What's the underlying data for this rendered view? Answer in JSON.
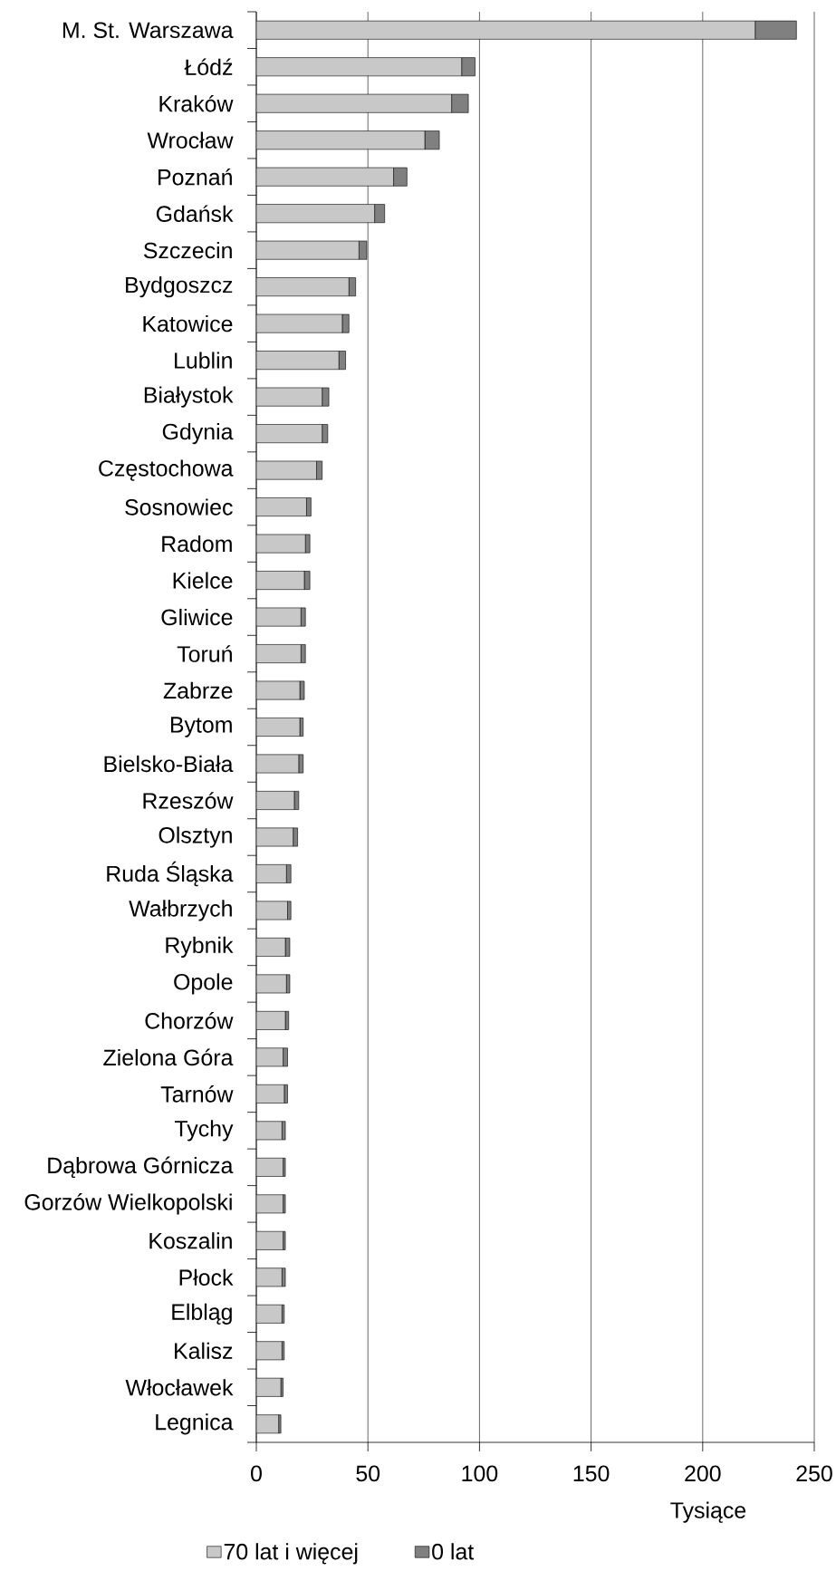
{
  "chart_data": {
    "type": "bar",
    "orientation": "horizontal",
    "stacked": true,
    "xlabel": "Tysiące",
    "categories": [
      "M. St. Warszawa",
      "Łódź",
      "Kraków",
      "Wrocław",
      "Poznań",
      "Gdańsk",
      "Szczecin",
      "Bydgoszcz",
      "Katowice",
      "Lublin",
      "Białystok",
      "Gdynia",
      "Częstochowa",
      "Sosnowiec",
      "Radom",
      "Kielce",
      "Gliwice",
      "Toruń",
      "Zabrze",
      "Bytom",
      "Bielsko-Biała",
      "Rzeszów",
      "Olsztyn",
      "Ruda Śląska",
      "Wałbrzych",
      "Rybnik",
      "Opole",
      "Chorzów",
      "Zielona Góra",
      "Tarnów",
      "Tychy",
      "Dąbrowa Górnicza",
      "Gorzów Wielkopolski",
      "Koszalin",
      "Płock",
      "Elbląg",
      "Kalisz",
      "Włocławek",
      "Legnica"
    ],
    "series": [
      {
        "name": "70 lat i więcej",
        "color": "#c8c8c8",
        "values": [
          223.5,
          92,
          87.5,
          75.5,
          61.5,
          53,
          46,
          41.5,
          38.5,
          37,
          29.5,
          29.5,
          27,
          22.5,
          22,
          21.5,
          20,
          20,
          19.5,
          19.5,
          19,
          17,
          16.5,
          13.5,
          14,
          13,
          13.5,
          13,
          12,
          12.5,
          11.5,
          12,
          12,
          12,
          11.5,
          11.5,
          11.5,
          11,
          10
        ]
      },
      {
        "name": "0 lat",
        "color": "#808080",
        "values": [
          18.5,
          6,
          7.5,
          6.5,
          6,
          4.5,
          3.5,
          3,
          3,
          3,
          3,
          2.5,
          2.5,
          2,
          2,
          2.5,
          2,
          2,
          2,
          1.5,
          2,
          2,
          2,
          2,
          1.5,
          2,
          1.5,
          1.5,
          2,
          1.5,
          1.5,
          1,
          1,
          1,
          1.5,
          1,
          1,
          1,
          1
        ]
      }
    ],
    "xlim": [
      0,
      250
    ],
    "xticks": [
      0,
      50,
      100,
      150,
      200,
      250
    ],
    "grid": "x",
    "legend": "bottom"
  }
}
